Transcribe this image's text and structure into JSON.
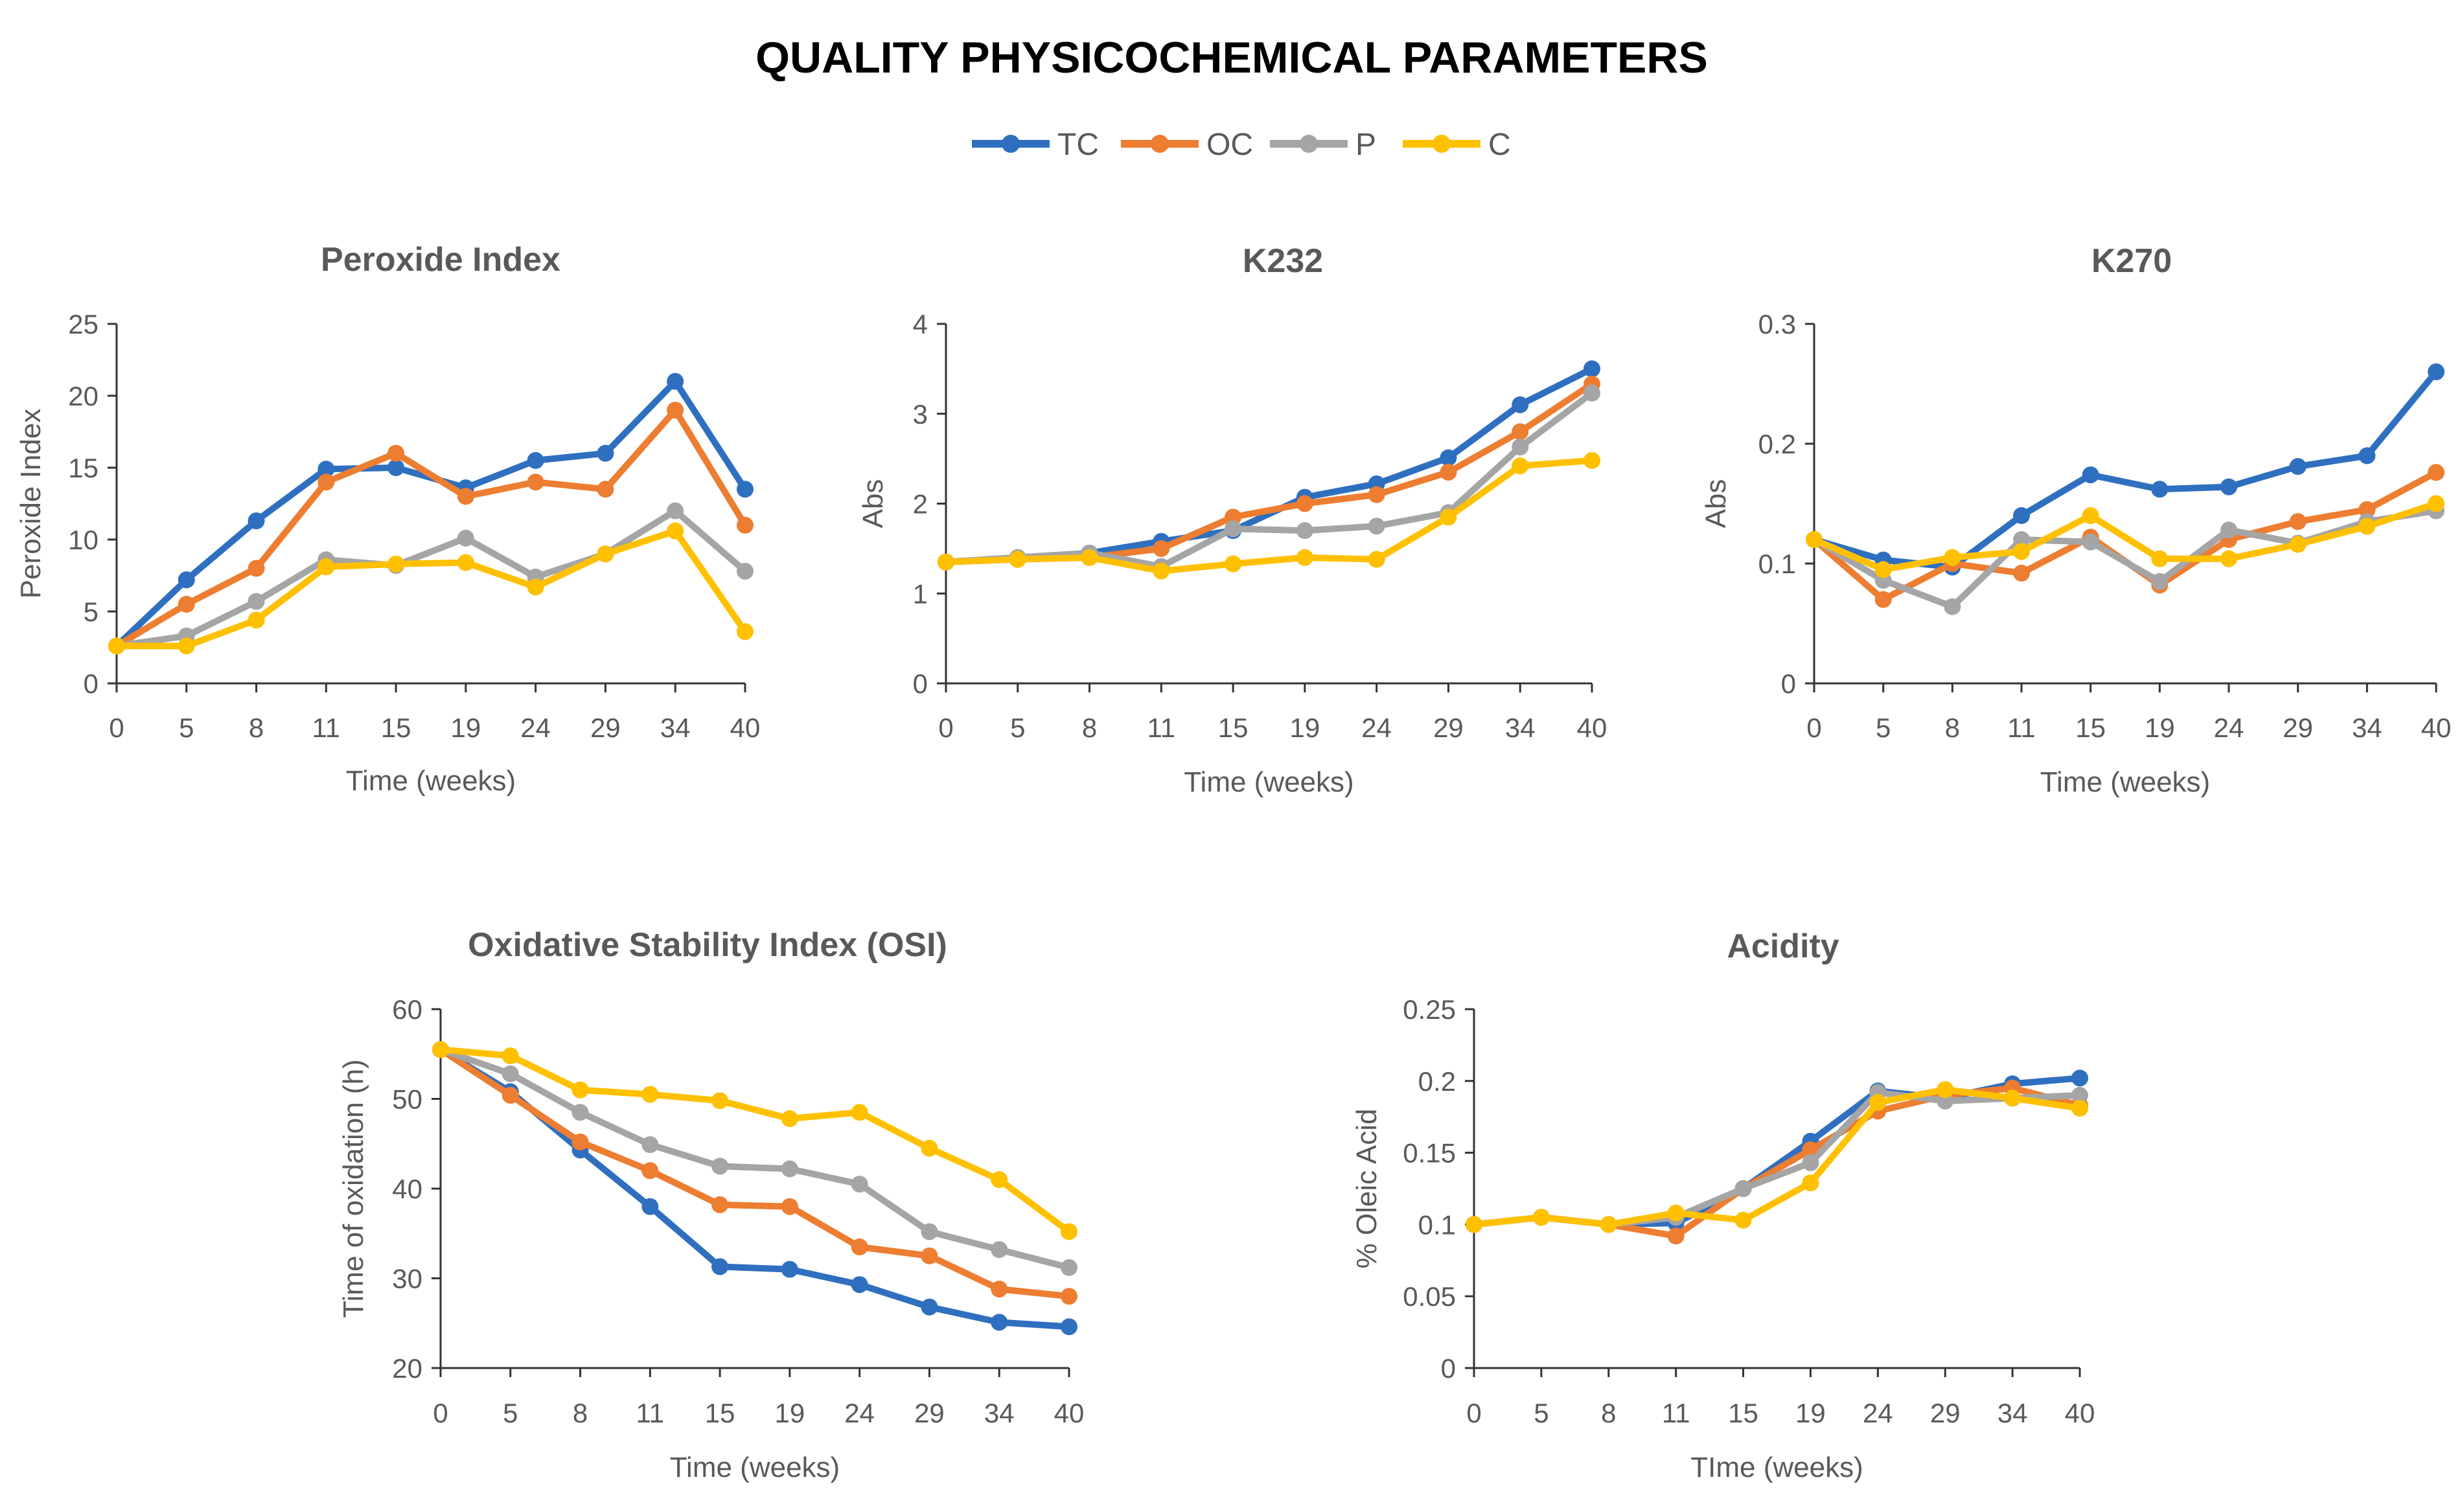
{
  "figure": {
    "title": "QUALITY PHYSICOCHEMICAL PARAMETERS"
  },
  "legend": [
    {
      "name": "TC",
      "color": "#2F6FBF"
    },
    {
      "name": "OC",
      "color": "#ED7D31"
    },
    {
      "name": "P",
      "color": "#A5A5A5"
    },
    {
      "name": "C",
      "color": "#FFC000"
    }
  ],
  "chart_data": [
    {
      "type": "line",
      "title": "Peroxide Index",
      "xlabel": "Time (weeks)",
      "ylabel": "Peroxide Index",
      "categories": [
        "0",
        "5",
        "8",
        "11",
        "15",
        "19",
        "24",
        "29",
        "34",
        "40"
      ],
      "ylim": [
        0,
        25
      ],
      "yticks": [
        0,
        5,
        10,
        15,
        20,
        25
      ],
      "ytick_labels": [
        "0",
        "5",
        "10",
        "15",
        "20",
        "25"
      ],
      "series": [
        {
          "name": "TC",
          "values": [
            2.6,
            7.2,
            11.3,
            14.9,
            15.0,
            13.6,
            15.5,
            16.0,
            21.0,
            13.5
          ]
        },
        {
          "name": "OC",
          "values": [
            2.6,
            5.5,
            8.0,
            14.0,
            16.0,
            13.0,
            14.0,
            13.5,
            19.0,
            11.0
          ]
        },
        {
          "name": "P",
          "values": [
            2.6,
            3.3,
            5.7,
            8.6,
            8.2,
            10.1,
            7.4,
            9.0,
            12.0,
            7.8
          ]
        },
        {
          "name": "C",
          "values": [
            2.6,
            2.6,
            4.4,
            8.1,
            8.3,
            8.4,
            6.7,
            9.0,
            10.6,
            3.6
          ]
        }
      ]
    },
    {
      "type": "line",
      "title": "K232",
      "xlabel": "Time (weeks)",
      "ylabel": "Abs",
      "categories": [
        "0",
        "5",
        "8",
        "11",
        "15",
        "19",
        "24",
        "29",
        "34",
        "40"
      ],
      "ylim": [
        0,
        4
      ],
      "yticks": [
        0,
        1,
        2,
        3,
        4
      ],
      "ytick_labels": [
        "0",
        "1",
        "2",
        "3",
        "4"
      ],
      "series": [
        {
          "name": "TC",
          "values": [
            1.35,
            1.4,
            1.45,
            1.58,
            1.7,
            2.07,
            2.22,
            2.51,
            3.1,
            3.5
          ]
        },
        {
          "name": "OC",
          "values": [
            1.35,
            1.38,
            1.4,
            1.5,
            1.85,
            2.0,
            2.1,
            2.35,
            2.8,
            3.33
          ]
        },
        {
          "name": "P",
          "values": [
            1.35,
            1.4,
            1.45,
            1.3,
            1.72,
            1.7,
            1.75,
            1.9,
            2.63,
            3.23
          ]
        },
        {
          "name": "C",
          "values": [
            1.35,
            1.38,
            1.4,
            1.25,
            1.33,
            1.4,
            1.38,
            1.85,
            2.42,
            2.48
          ]
        }
      ]
    },
    {
      "type": "line",
      "title": "K270",
      "xlabel": "Time (weeks)",
      "ylabel": "Abs",
      "categories": [
        "0",
        "5",
        "8",
        "11",
        "15",
        "19",
        "24",
        "29",
        "34",
        "40"
      ],
      "ylim": [
        0,
        0.3
      ],
      "yticks": [
        0,
        0.1,
        0.2,
        0.3
      ],
      "ytick_labels": [
        "0",
        "0.1",
        "0.2",
        "0.3"
      ],
      "series": [
        {
          "name": "TC",
          "values": [
            0.12,
            0.103,
            0.097,
            0.14,
            0.174,
            0.162,
            0.164,
            0.181,
            0.19,
            0.26
          ]
        },
        {
          "name": "OC",
          "values": [
            0.12,
            0.07,
            0.1,
            0.092,
            0.122,
            0.082,
            0.12,
            0.135,
            0.145,
            0.176
          ]
        },
        {
          "name": "P",
          "values": [
            0.12,
            0.086,
            0.064,
            0.12,
            0.118,
            0.085,
            0.128,
            0.117,
            0.135,
            0.144
          ]
        },
        {
          "name": "C",
          "values": [
            0.12,
            0.095,
            0.105,
            0.11,
            0.14,
            0.104,
            0.104,
            0.116,
            0.131,
            0.15
          ]
        }
      ]
    },
    {
      "type": "line",
      "title": "Oxidative Stability Index (OSI)",
      "xlabel": "Time (weeks)",
      "ylabel": "Time of oxidation (h)",
      "categories": [
        "0",
        "5",
        "8",
        "11",
        "15",
        "19",
        "24",
        "29",
        "34",
        "40"
      ],
      "ylim": [
        20,
        60
      ],
      "yticks": [
        20,
        30,
        40,
        50,
        60
      ],
      "ytick_labels": [
        "20",
        "30",
        "40",
        "50",
        "60"
      ],
      "series": [
        {
          "name": "TC",
          "values": [
            55.5,
            50.8,
            44.3,
            38.0,
            31.3,
            31.0,
            29.3,
            26.8,
            25.1,
            24.6
          ]
        },
        {
          "name": "OC",
          "values": [
            55.5,
            50.4,
            45.2,
            42.0,
            38.2,
            38.0,
            33.5,
            32.5,
            28.8,
            28.0
          ]
        },
        {
          "name": "P",
          "values": [
            55.5,
            52.8,
            48.5,
            44.9,
            42.5,
            42.2,
            40.5,
            35.2,
            33.2,
            31.2
          ]
        },
        {
          "name": "C",
          "values": [
            55.5,
            54.8,
            51.0,
            50.5,
            49.8,
            47.8,
            48.5,
            44.5,
            41.0,
            35.2
          ]
        }
      ]
    },
    {
      "type": "line",
      "title": "Acidity",
      "xlabel": "TIme (weeks)",
      "ylabel": "% Oleic Acid",
      "categories": [
        "0",
        "5",
        "8",
        "11",
        "15",
        "19",
        "24",
        "29",
        "34",
        "40"
      ],
      "ylim": [
        0,
        0.25
      ],
      "yticks": [
        0,
        0.05,
        0.1,
        0.15,
        0.2,
        0.25
      ],
      "ytick_labels": [
        "0",
        "0.05",
        "0.1",
        "0.15",
        "0.2",
        "0.25"
      ],
      "series": [
        {
          "name": "TC",
          "values": [
            0.1,
            0.105,
            0.1,
            0.101,
            0.125,
            0.158,
            0.193,
            0.188,
            0.198,
            0.202
          ]
        },
        {
          "name": "OC",
          "values": [
            0.1,
            0.105,
            0.1,
            0.092,
            0.125,
            0.152,
            0.179,
            0.19,
            0.195,
            0.183
          ]
        },
        {
          "name": "P",
          "values": [
            0.1,
            0.105,
            0.1,
            0.105,
            0.125,
            0.143,
            0.192,
            0.186,
            0.188,
            0.19
          ]
        },
        {
          "name": "C",
          "values": [
            0.1,
            0.105,
            0.1,
            0.108,
            0.103,
            0.129,
            0.185,
            0.194,
            0.188,
            0.181
          ]
        }
      ]
    }
  ]
}
